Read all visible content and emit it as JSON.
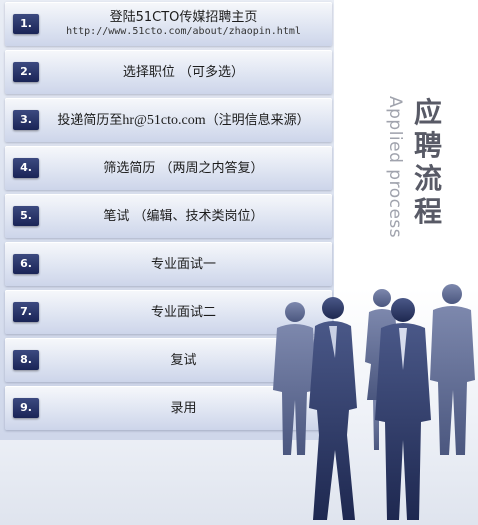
{
  "title": "应聘流程",
  "subtitle": "Applied process",
  "steps": [
    {
      "num": "1.",
      "label": "登陆51CTO传媒招聘主页",
      "url": "http://www.51cto.com/about/zhaopin.html"
    },
    {
      "num": "2.",
      "label": "选择职位 （可多选）"
    },
    {
      "num": "3.",
      "label_before": "投递简历至 ",
      "email": "hr@51cto.com",
      "label_after": "（注明信息来源）"
    },
    {
      "num": "4.",
      "label": "筛选简历 （两周之内答复）"
    },
    {
      "num": "5.",
      "label": "笔试 （编辑、技术类岗位）"
    },
    {
      "num": "6.",
      "label": "专业面试一"
    },
    {
      "num": "7.",
      "label": "专业面试二"
    },
    {
      "num": "8.",
      "label": "复试"
    },
    {
      "num": "9.",
      "label": "录用"
    }
  ],
  "colors": {
    "badge": "#1f2a5c",
    "silhouette": "#2c3763",
    "panel": "#d9e0ef"
  }
}
